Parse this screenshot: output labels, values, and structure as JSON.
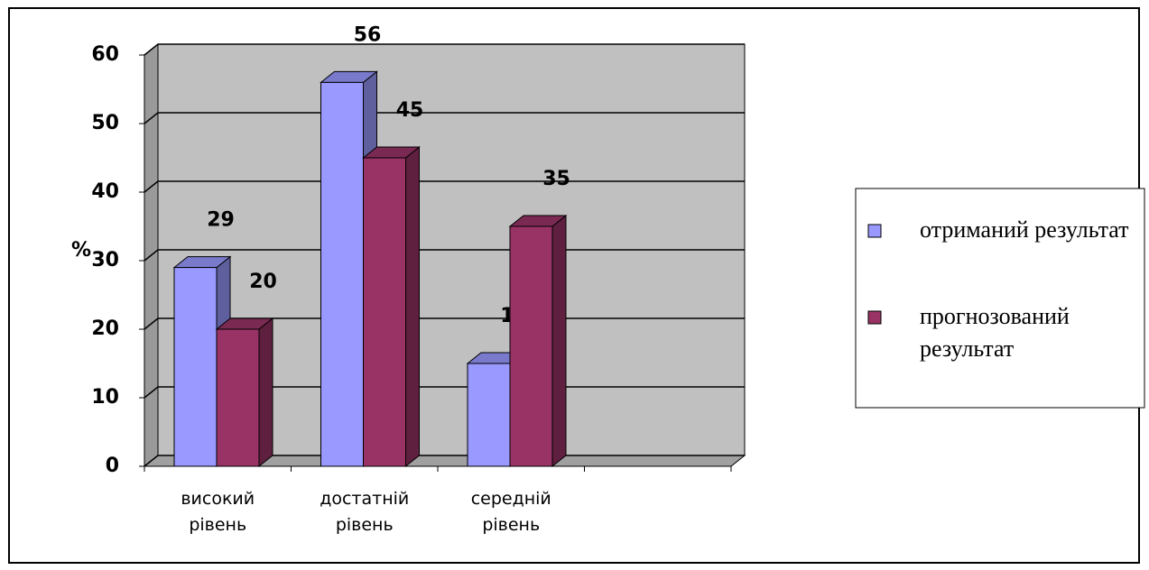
{
  "chart_data": {
    "type": "bar3d",
    "y_label": "%",
    "categories": [
      "високий рівень",
      "достатній рівень",
      "середній рівень",
      null
    ],
    "series": [
      {
        "name": "отриманий результат",
        "color": "#9999ff",
        "values": [
          29,
          56,
          15,
          null
        ]
      },
      {
        "name": "прогнозований результат",
        "color": "#993366",
        "values": [
          20,
          45,
          35,
          null
        ]
      }
    ],
    "ylim": [
      0,
      60
    ],
    "yticks": [
      0,
      10,
      20,
      30,
      40,
      50,
      60
    ],
    "grid": true,
    "legend": "right"
  }
}
